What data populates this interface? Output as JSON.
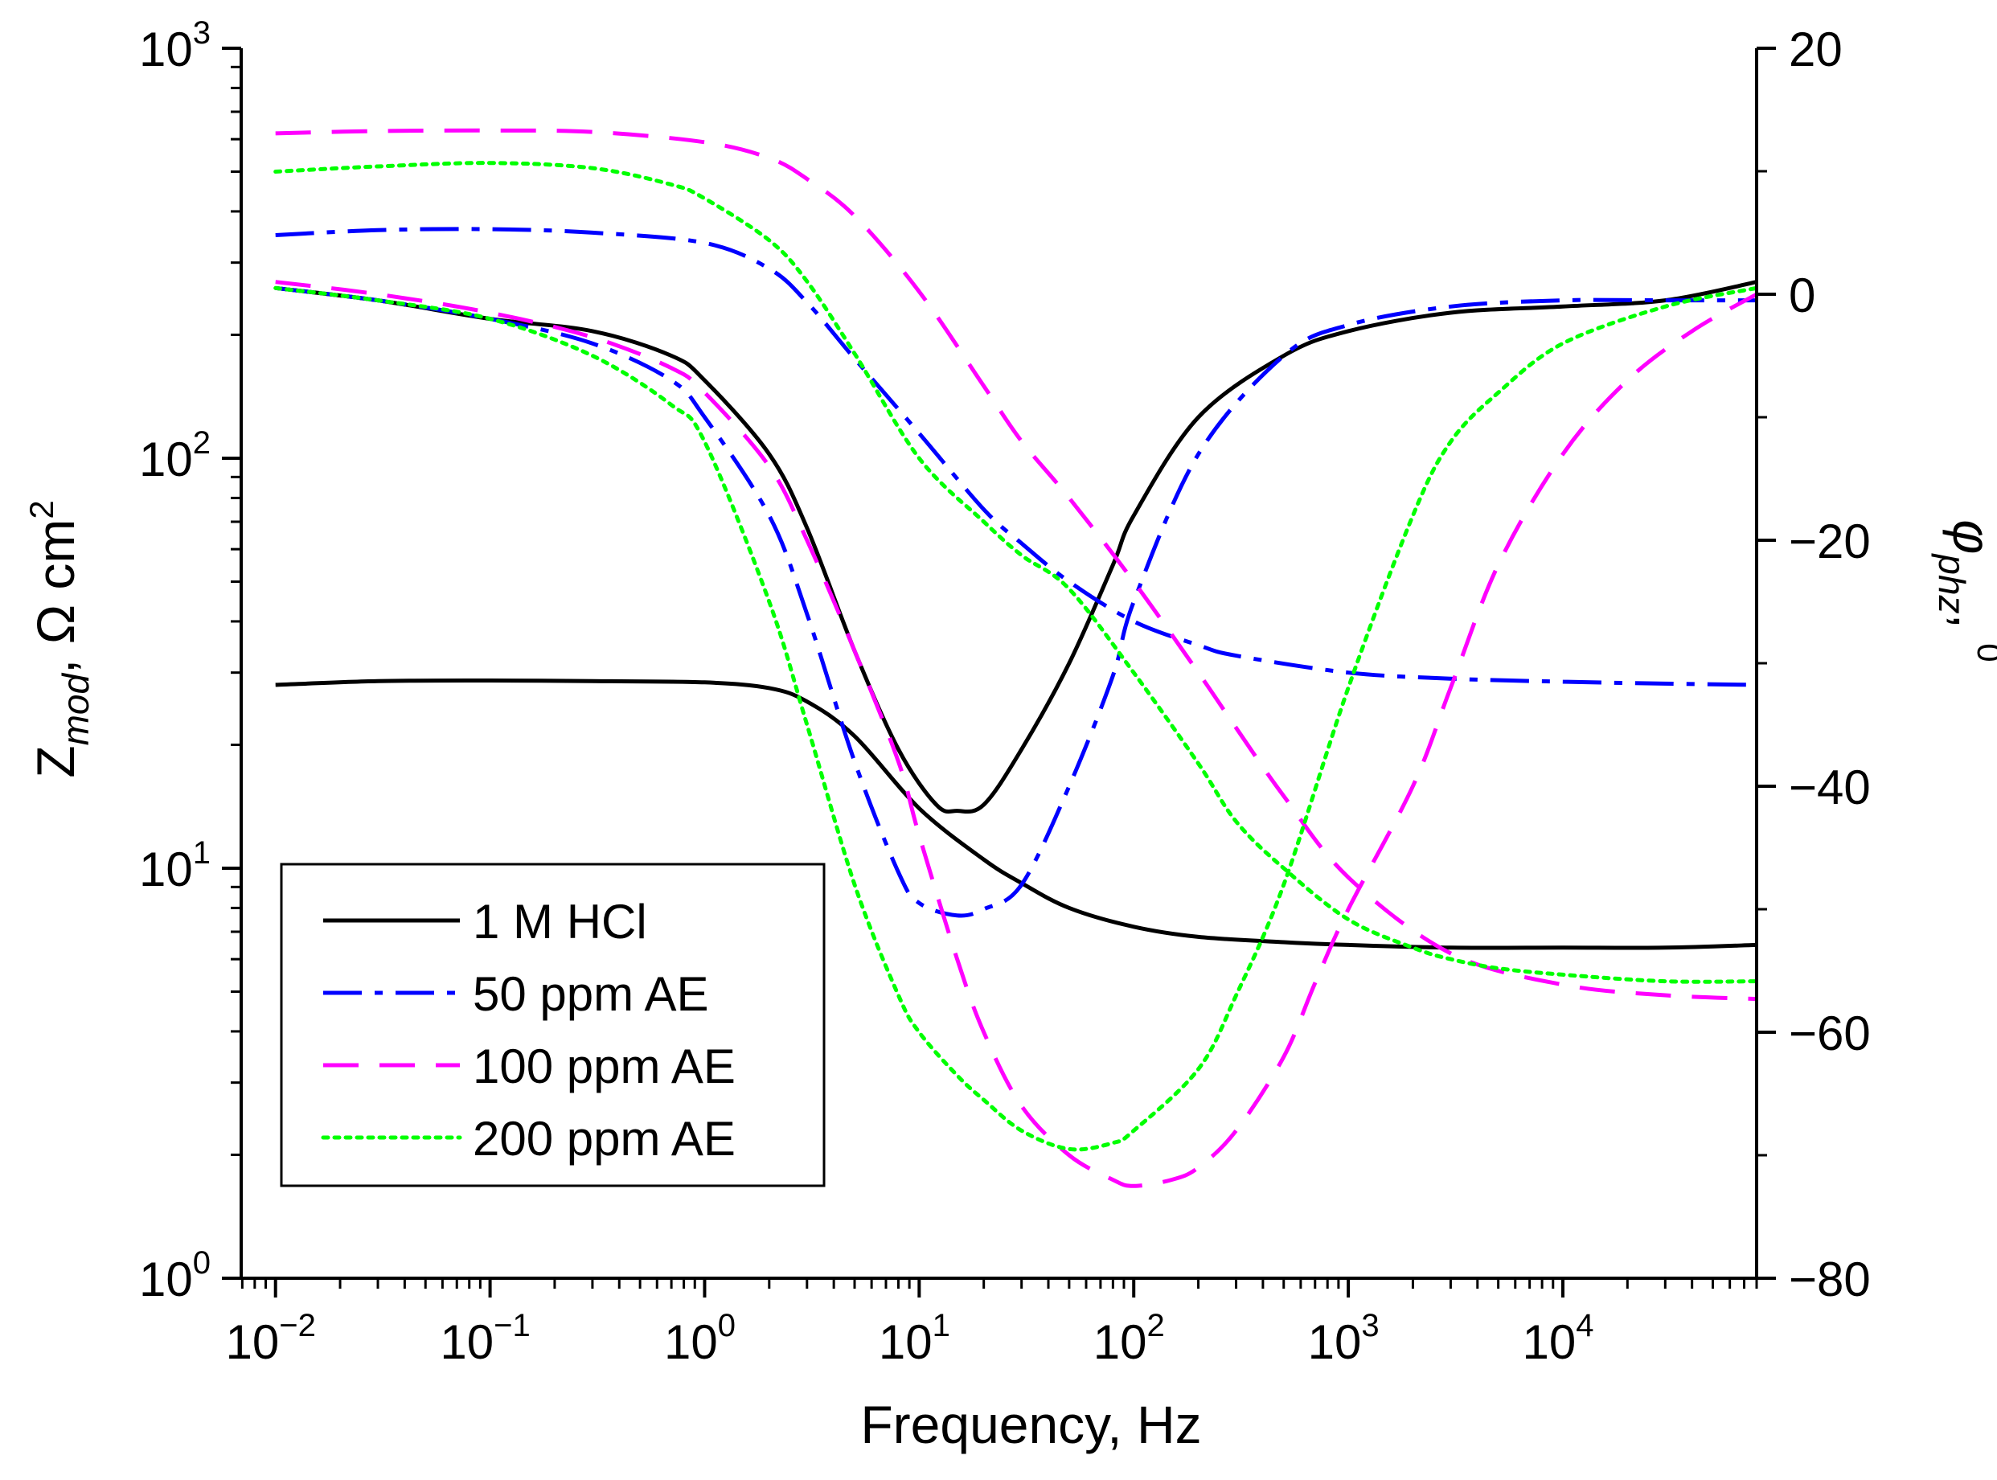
{
  "chart_data": {
    "type": "line",
    "title": "",
    "xlabel": "Frequency, Hz",
    "ylabel_left": {
      "main": "Z",
      "sub": "mod",
      "units": ",  Ω cm",
      "sup": "2"
    },
    "ylabel_right": {
      "main": "φ",
      "sub": "phz",
      "suffix": ", ",
      "sup": "0"
    },
    "x_scale": "log",
    "xlim": [
      0.01,
      80000
    ],
    "x_ticks": [
      {
        "base": "10",
        "exp": "−2"
      },
      {
        "base": "10",
        "exp": "−1"
      },
      {
        "base": "10",
        "exp": "0"
      },
      {
        "base": "10",
        "exp": "1"
      },
      {
        "base": "10",
        "exp": "2"
      },
      {
        "base": "10",
        "exp": "3"
      },
      {
        "base": "10",
        "exp": "4"
      }
    ],
    "y_left_scale": "log",
    "ylim_left": [
      1,
      1000
    ],
    "y_left_ticks": [
      {
        "base": "10",
        "exp": "0"
      },
      {
        "base": "10",
        "exp": "1"
      },
      {
        "base": "10",
        "exp": "2"
      },
      {
        "base": "10",
        "exp": "3"
      }
    ],
    "ylim_right": [
      -80,
      20
    ],
    "y_right_ticks": [
      "20",
      "0",
      "−20",
      "−40",
      "−60",
      "−80"
    ],
    "legend": {
      "position": "lower-left",
      "entries": [
        "1 M HCl",
        "50 ppm AE",
        "100 ppm AE",
        "200 ppm AE"
      ]
    },
    "styles": [
      {
        "color": "#000000",
        "dash": "solid"
      },
      {
        "color": "#0000ff",
        "dash": "dashdot"
      },
      {
        "color": "#ff00ff",
        "dash": "dashed"
      },
      {
        "color": "#00ff00",
        "dash": "dotted"
      }
    ],
    "series": [
      {
        "name": "1 M HCl",
        "quantity": "Zmod",
        "axis": "left",
        "x": [
          0.01,
          0.03,
          0.1,
          0.3,
          1,
          2,
          3,
          5,
          10,
          20,
          30,
          50,
          100,
          200,
          500,
          1000,
          3000,
          10000,
          30000,
          80000
        ],
        "y": [
          28,
          28.6,
          28.7,
          28.6,
          28.4,
          27.5,
          25.5,
          21,
          14,
          10.5,
          9.2,
          8,
          7.2,
          6.8,
          6.6,
          6.5,
          6.4,
          6.4,
          6.4,
          6.5
        ]
      },
      {
        "name": "1 M HCl",
        "quantity": "phase",
        "axis": "right",
        "x": [
          0.01,
          0.03,
          0.1,
          0.3,
          0.7,
          1,
          2,
          3,
          5,
          8,
          12,
          15,
          20,
          30,
          50,
          80,
          100,
          200,
          500,
          1000,
          3000,
          10000,
          30000,
          80000
        ],
        "y": [
          0.5,
          -0.5,
          -2,
          -3,
          -5,
          -7,
          -13,
          -19,
          -29,
          -37,
          -41.5,
          -42,
          -41.5,
          -37,
          -30,
          -22,
          -18,
          -10,
          -5,
          -3,
          -1.5,
          -1,
          -0.5,
          1
        ]
      },
      {
        "name": "50 ppm AE",
        "quantity": "Zmod",
        "axis": "left",
        "x": [
          0.01,
          0.03,
          0.1,
          0.3,
          1,
          2,
          3,
          5,
          10,
          20,
          30,
          50,
          100,
          200,
          300,
          1000,
          3000,
          10000,
          30000,
          80000
        ],
        "y": [
          350,
          360,
          362,
          355,
          335,
          290,
          240,
          175,
          115,
          75,
          62,
          50,
          40,
          35,
          33,
          30,
          29,
          28.5,
          28.2,
          28
        ]
      },
      {
        "name": "50 ppm AE",
        "quantity": "phase",
        "axis": "right",
        "x": [
          0.01,
          0.03,
          0.1,
          0.3,
          0.7,
          1,
          2,
          3,
          5,
          8,
          10,
          15,
          20,
          30,
          50,
          80,
          100,
          200,
          500,
          1000,
          3000,
          10000,
          30000,
          80000
        ],
        "y": [
          0.5,
          -0.5,
          -2,
          -4,
          -7,
          -10,
          -18,
          -26,
          -38,
          -47,
          -49.5,
          -50.5,
          -50,
          -48,
          -40,
          -31,
          -25,
          -13,
          -5,
          -2.5,
          -1,
          -0.5,
          -0.5,
          -0.5
        ]
      },
      {
        "name": "100 ppm AE",
        "quantity": "Zmod",
        "axis": "left",
        "x": [
          0.01,
          0.03,
          0.1,
          0.3,
          1,
          2,
          3,
          5,
          10,
          20,
          30,
          50,
          100,
          200,
          300,
          500,
          1000,
          3000,
          10000,
          30000,
          80000
        ],
        "y": [
          620,
          628,
          630,
          625,
          590,
          540,
          480,
          390,
          255,
          150,
          110,
          80,
          50,
          30,
          22,
          15,
          9.5,
          6.2,
          5.2,
          4.9,
          4.8
        ]
      },
      {
        "name": "100 ppm AE",
        "quantity": "phase",
        "axis": "right",
        "x": [
          0.01,
          0.03,
          0.1,
          0.3,
          0.7,
          1,
          2,
          3,
          5,
          8,
          10,
          15,
          20,
          30,
          50,
          80,
          100,
          150,
          200,
          300,
          500,
          700,
          1000,
          2000,
          3000,
          5000,
          10000,
          20000,
          40000,
          80000
        ],
        "y": [
          1,
          0,
          -1.5,
          -3.5,
          -6,
          -8,
          -14,
          -20,
          -29,
          -38,
          -44,
          -54,
          -60,
          -66,
          -70,
          -72,
          -72.5,
          -72,
          -71,
          -68,
          -62,
          -56,
          -50,
          -40,
          -32,
          -22,
          -13,
          -7,
          -3,
          0
        ]
      },
      {
        "name": "200 ppm AE",
        "quantity": "Zmod",
        "axis": "left",
        "x": [
          0.01,
          0.03,
          0.1,
          0.3,
          0.7,
          1,
          2,
          3,
          5,
          10,
          20,
          30,
          50,
          100,
          200,
          300,
          500,
          1000,
          2000,
          3000,
          5000,
          10000,
          30000,
          80000
        ],
        "y": [
          500,
          515,
          525,
          510,
          465,
          430,
          340,
          270,
          180,
          100,
          70,
          58,
          48,
          30,
          18,
          13,
          10,
          7.5,
          6.4,
          6.0,
          5.7,
          5.5,
          5.3,
          5.3
        ]
      },
      {
        "name": "200 ppm AE",
        "quantity": "phase",
        "axis": "right",
        "x": [
          0.01,
          0.03,
          0.1,
          0.3,
          0.7,
          1,
          2,
          3,
          5,
          8,
          10,
          15,
          20,
          30,
          50,
          80,
          100,
          200,
          300,
          500,
          1000,
          2000,
          3000,
          5000,
          10000,
          30000,
          80000
        ],
        "y": [
          0.5,
          -0.5,
          -2,
          -5,
          -9,
          -12,
          -25,
          -35,
          -48,
          -57,
          -60,
          -63.5,
          -65.5,
          -68,
          -69.5,
          -69,
          -68,
          -63,
          -57,
          -48,
          -32,
          -18,
          -12,
          -8,
          -4,
          -1,
          0.5
        ]
      }
    ]
  }
}
